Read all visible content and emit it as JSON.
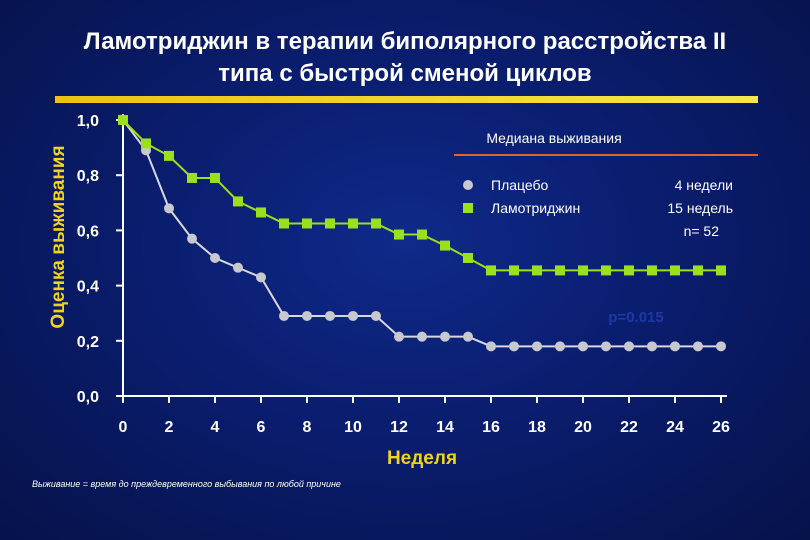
{
  "chart_data": {
    "type": "line",
    "title": "Ламотриджин в терапии биполярного расстройства II типа с быстрой сменой циклов",
    "title_lines": [
      "Ламотриджин в терапии биполярного расстройства II",
      "типа с быстрой сменой циклов"
    ],
    "xlabel": "Неделя",
    "ylabel": "Оценка выживания",
    "xlim": [
      0,
      26
    ],
    "ylim": [
      0,
      1
    ],
    "x_ticks": [
      "0",
      "2",
      "4",
      "6",
      "8",
      "10",
      "12",
      "14",
      "16",
      "18",
      "20",
      "22",
      "24",
      "26"
    ],
    "y_ticks": [
      "0,0",
      "0,2",
      "0,4",
      "0,6",
      "0,8",
      "1,0"
    ],
    "grid": false,
    "legend_placement": "top-right",
    "series": [
      {
        "name": "Плацебо",
        "marker": "circle",
        "color": "#c8c8d0",
        "x": [
          0,
          1,
          2,
          3,
          4,
          5,
          6,
          7,
          8,
          9,
          10,
          11,
          12,
          13,
          14,
          15,
          16,
          17,
          18,
          19,
          20,
          21,
          22,
          23,
          24,
          25,
          26
        ],
        "y": [
          1.0,
          0.89,
          0.68,
          0.57,
          0.5,
          0.465,
          0.43,
          0.29,
          0.29,
          0.29,
          0.29,
          0.29,
          0.215,
          0.215,
          0.215,
          0.215,
          0.18,
          0.18,
          0.18,
          0.18,
          0.18,
          0.18,
          0.18,
          0.18,
          0.18,
          0.18,
          0.18
        ]
      },
      {
        "name": "Ламотриджин",
        "marker": "square",
        "color": "#9be01c",
        "x": [
          0,
          1,
          2,
          3,
          4,
          5,
          6,
          7,
          8,
          9,
          10,
          11,
          12,
          13,
          14,
          15,
          16,
          17,
          18,
          19,
          20,
          21,
          22,
          23,
          24,
          25,
          26
        ],
        "y": [
          1.0,
          0.915,
          0.87,
          0.79,
          0.79,
          0.705,
          0.665,
          0.625,
          0.625,
          0.625,
          0.625,
          0.625,
          0.585,
          0.585,
          0.545,
          0.5,
          0.455,
          0.455,
          0.455,
          0.455,
          0.455,
          0.455,
          0.455,
          0.455,
          0.455,
          0.455,
          0.455
        ]
      }
    ],
    "legend": {
      "heading": "Медиана выживания",
      "entries": [
        {
          "label": "Плацебо",
          "median": "4 недели"
        },
        {
          "label": "Ламотриджин",
          "median": "15 недель"
        }
      ],
      "n": "n= 52"
    },
    "annotation": "p=0.015",
    "footnote": "Выживание = время до преждевременного выбывания по любой причине"
  },
  "colors": {
    "background": "#0a1d6e",
    "rule": "#f2c012",
    "legend_line": "#e0632a",
    "axis": "#ffffff",
    "placebo": "#c8c8d0",
    "lamotrigine": "#9be01c",
    "placebo_line": "#d8d8e0",
    "lamotrigine_line": "#9be01c",
    "annotation": "#1e3aa0"
  }
}
